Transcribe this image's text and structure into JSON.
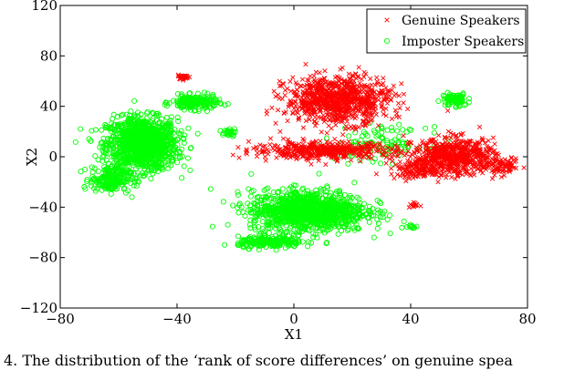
{
  "chart_data": {
    "type": "scatter",
    "xlabel": "X1",
    "ylabel": "X2",
    "xlim": [
      -80,
      80
    ],
    "ylim": [
      -120,
      120
    ],
    "x_ticks": [
      -80,
      -40,
      0,
      40,
      80
    ],
    "y_ticks": [
      -120,
      -80,
      -40,
      0,
      40,
      80,
      120
    ],
    "x_tick_labels": [
      "−80",
      "−40",
      "0",
      "40",
      "80"
    ],
    "y_tick_labels": [
      "−120",
      "−80",
      "−40",
      "0",
      "40",
      "80",
      "120"
    ],
    "grid": false,
    "legend_position": "top-right",
    "series": [
      {
        "name": "Genuine Speakers",
        "marker": "x",
        "color": "#ff0000",
        "clusters": [
          {
            "cx": 15,
            "cy": 45,
            "sx": 16,
            "sy": 17,
            "n": 900
          },
          {
            "cx": 10,
            "cy": 5,
            "sx": 22,
            "sy": 6,
            "n": 450
          },
          {
            "cx": 55,
            "cy": 0,
            "sx": 13,
            "sy": 13,
            "n": 650
          },
          {
            "cx": 72,
            "cy": -8,
            "sx": 5,
            "sy": 5,
            "n": 70
          },
          {
            "cx": 42,
            "cy": -10,
            "sx": 8,
            "sy": 7,
            "n": 120
          },
          {
            "cx": 41,
            "cy": -38,
            "sx": 2,
            "sy": 2,
            "n": 12
          },
          {
            "cx": -38,
            "cy": 63,
            "sx": 2.5,
            "sy": 1.5,
            "n": 25
          }
        ]
      },
      {
        "name": "Imposter Speakers",
        "marker": "o",
        "color": "#00ff00",
        "clusters": [
          {
            "cx": -52,
            "cy": 10,
            "sx": 11,
            "sy": 19,
            "n": 1200
          },
          {
            "cx": -34,
            "cy": 43,
            "sx": 7,
            "sy": 5,
            "n": 200
          },
          {
            "cx": -63,
            "cy": -18,
            "sx": 6,
            "sy": 9,
            "n": 200
          },
          {
            "cx": 5,
            "cy": -43,
            "sx": 18,
            "sy": 15,
            "n": 1100
          },
          {
            "cx": -8,
            "cy": -68,
            "sx": 10,
            "sy": 4,
            "n": 200
          },
          {
            "cx": 55,
            "cy": 45,
            "sx": 4,
            "sy": 5,
            "n": 80
          },
          {
            "cx": 40,
            "cy": -55,
            "sx": 2,
            "sy": 2,
            "n": 12
          },
          {
            "cx": -22,
            "cy": 20,
            "sx": 3,
            "sy": 3,
            "n": 30
          },
          {
            "cx": 30,
            "cy": 10,
            "sx": 14,
            "sy": 12,
            "n": 120
          }
        ]
      }
    ]
  },
  "caption": "4. The distribution of the ‘rank of score differences’ on genuine spea"
}
